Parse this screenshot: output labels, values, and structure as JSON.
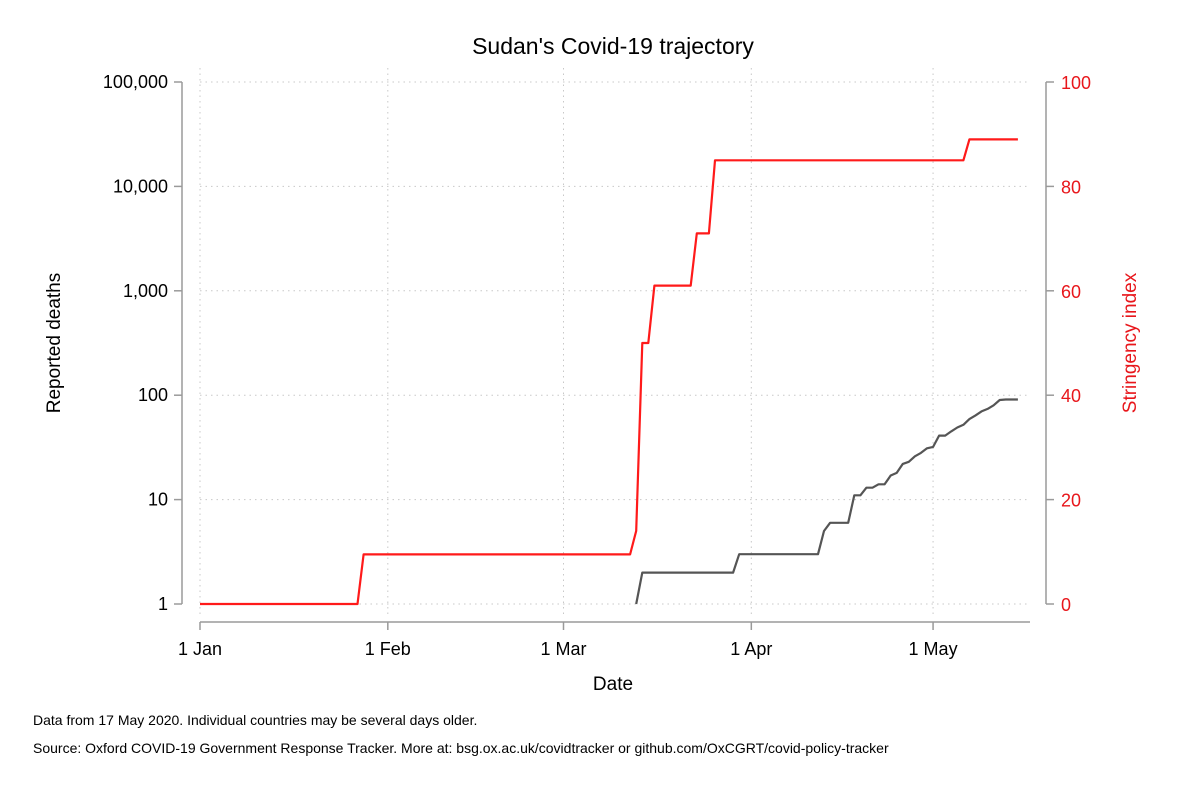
{
  "chart_data": {
    "type": "line",
    "title": "Sudan's Covid-19 trajectory",
    "xlabel": "Date",
    "ylabel_left": "Reported deaths",
    "ylabel_right": "Stringency index",
    "x_ticks": [
      {
        "date": "2020-01-01",
        "label": "1 Jan"
      },
      {
        "date": "2020-02-01",
        "label": "1 Feb"
      },
      {
        "date": "2020-03-01",
        "label": "1 Mar"
      },
      {
        "date": "2020-04-01",
        "label": "1 Apr"
      },
      {
        "date": "2020-05-01",
        "label": "1 May"
      }
    ],
    "xlim": [
      "2020-01-01",
      "2020-05-17"
    ],
    "y_left": {
      "scale": "log",
      "lim": [
        1,
        100000
      ],
      "ticks": [
        {
          "value": 1,
          "label": "1"
        },
        {
          "value": 10,
          "label": "10"
        },
        {
          "value": 100,
          "label": "100"
        },
        {
          "value": 1000,
          "label": "1,000"
        },
        {
          "value": 10000,
          "label": "10,000"
        },
        {
          "value": 100000,
          "label": "100,000"
        }
      ]
    },
    "y_right": {
      "scale": "linear",
      "lim": [
        0,
        100
      ],
      "ticks": [
        {
          "value": 0,
          "label": "0"
        },
        {
          "value": 20,
          "label": "20"
        },
        {
          "value": 40,
          "label": "40"
        },
        {
          "value": 60,
          "label": "60"
        },
        {
          "value": 80,
          "label": "80"
        },
        {
          "value": 100,
          "label": "100"
        }
      ]
    },
    "grid": true,
    "series": [
      {
        "axis": "left",
        "color": "#555555",
        "points": [
          [
            "2020-03-13",
            1
          ],
          [
            "2020-03-14",
            2
          ],
          [
            "2020-03-29",
            2
          ],
          [
            "2020-03-30",
            3
          ],
          [
            "2020-04-12",
            3
          ],
          [
            "2020-04-13",
            5
          ],
          [
            "2020-04-14",
            6
          ],
          [
            "2020-04-16",
            6
          ],
          [
            "2020-04-17",
            6
          ],
          [
            "2020-04-18",
            11
          ],
          [
            "2020-04-19",
            11
          ],
          [
            "2020-04-20",
            13
          ],
          [
            "2020-04-21",
            13
          ],
          [
            "2020-04-22",
            14
          ],
          [
            "2020-04-23",
            14
          ],
          [
            "2020-04-24",
            17
          ],
          [
            "2020-04-25",
            18
          ],
          [
            "2020-04-26",
            22
          ],
          [
            "2020-04-27",
            23
          ],
          [
            "2020-04-28",
            26
          ],
          [
            "2020-04-29",
            28
          ],
          [
            "2020-04-30",
            31
          ],
          [
            "2020-05-01",
            32
          ],
          [
            "2020-05-02",
            41
          ],
          [
            "2020-05-03",
            41
          ],
          [
            "2020-05-04",
            45
          ],
          [
            "2020-05-05",
            49
          ],
          [
            "2020-05-06",
            52
          ],
          [
            "2020-05-07",
            59
          ],
          [
            "2020-05-08",
            64
          ],
          [
            "2020-05-09",
            70
          ],
          [
            "2020-05-10",
            74
          ],
          [
            "2020-05-11",
            80
          ],
          [
            "2020-05-12",
            90
          ],
          [
            "2020-05-13",
            91
          ],
          [
            "2020-05-14",
            91
          ],
          [
            "2020-05-15",
            91
          ]
        ]
      },
      {
        "axis": "right",
        "color": "#ff1a1a",
        "points": [
          [
            "2020-01-01",
            0
          ],
          [
            "2020-01-27",
            0
          ],
          [
            "2020-01-28",
            9.5
          ],
          [
            "2020-03-12",
            9.5
          ],
          [
            "2020-03-13",
            14
          ],
          [
            "2020-03-14",
            50
          ],
          [
            "2020-03-15",
            50
          ],
          [
            "2020-03-16",
            61
          ],
          [
            "2020-03-22",
            61
          ],
          [
            "2020-03-23",
            71
          ],
          [
            "2020-03-25",
            71
          ],
          [
            "2020-03-26",
            85
          ],
          [
            "2020-05-06",
            85
          ],
          [
            "2020-05-07",
            89
          ],
          [
            "2020-05-15",
            89
          ]
        ]
      }
    ]
  },
  "footnotes": {
    "line1": "Data from 17 May 2020. Individual countries may be several days older.",
    "line2": "Source: Oxford COVID-19 Government Response Tracker. More at: bsg.ox.ac.uk/covidtracker or github.com/OxCGRT/covid-policy-tracker"
  },
  "colors": {
    "deaths_line": "#555555",
    "stringency_line": "#ff1a1a",
    "stringency_axis_text": "#e8161b"
  }
}
